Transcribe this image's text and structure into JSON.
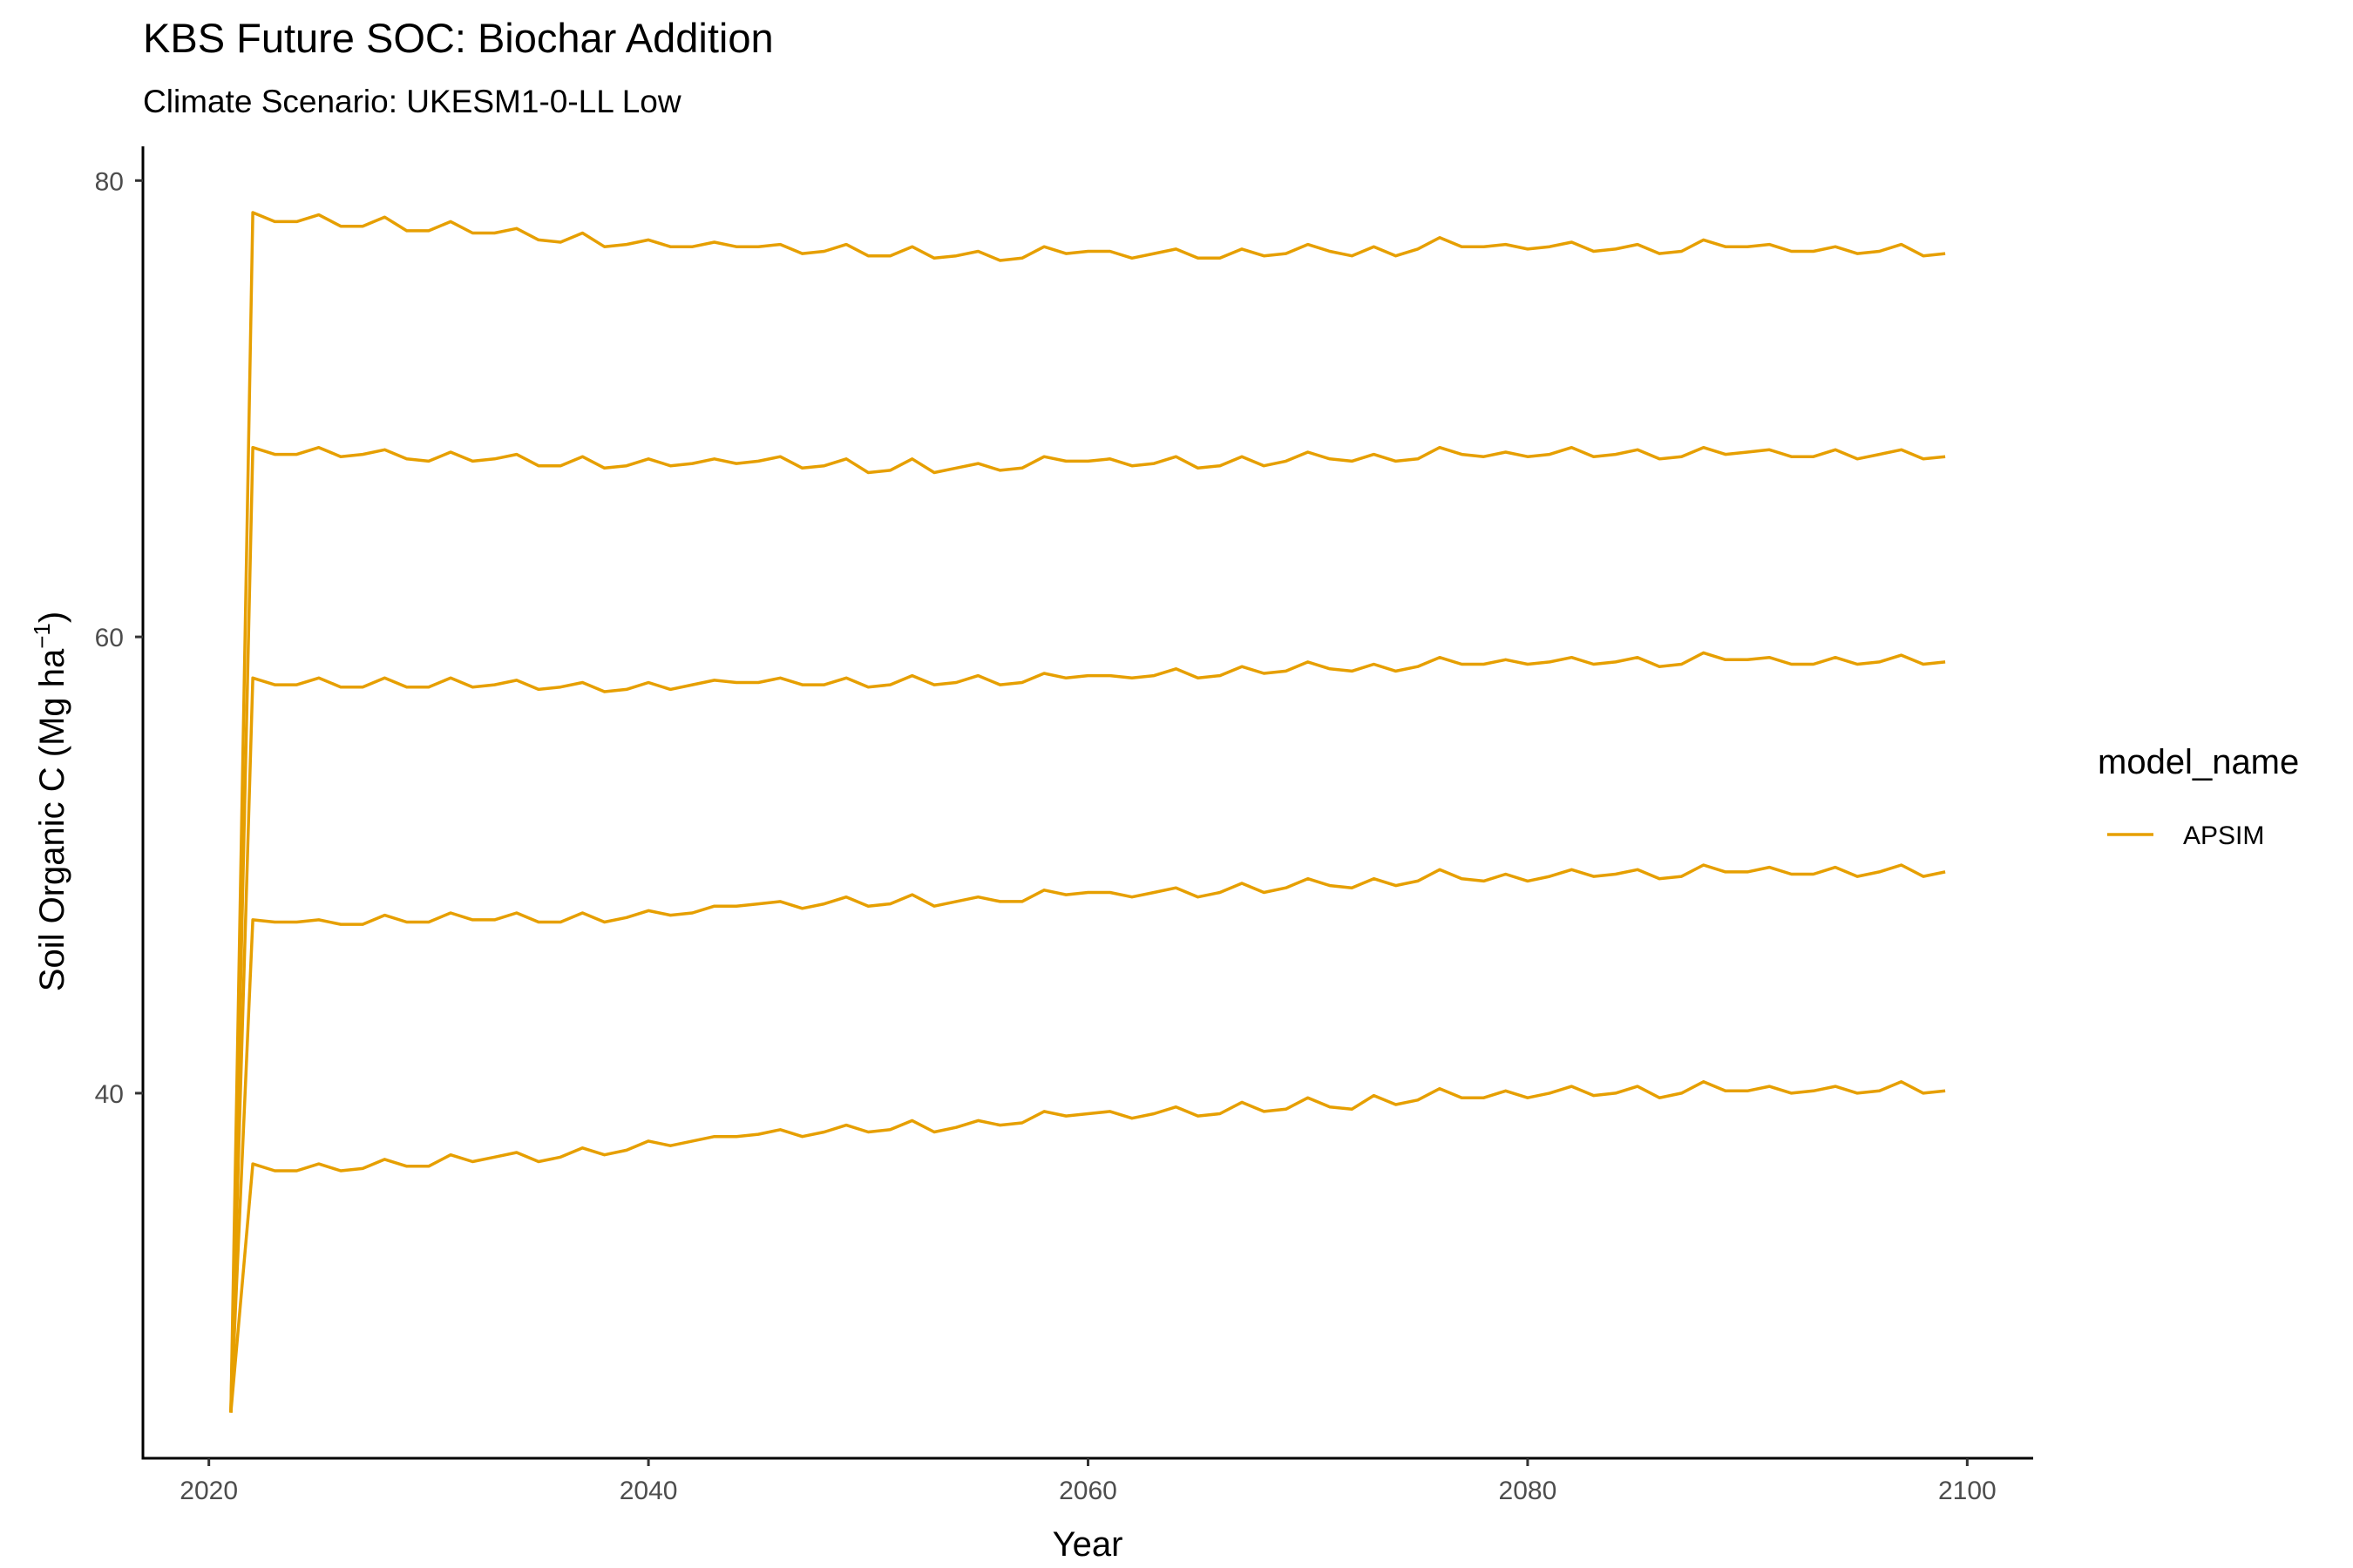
{
  "chart_data": {
    "type": "line",
    "title": "KBS  Future SOC: Biochar Addition",
    "subtitle": "Climate Scenario: UKESM1-0-LL Low",
    "xlabel": "Year",
    "ylabel_main": "Soil Organic C (Mg ha",
    "ylabel_sup": "−1",
    "ylabel_close": ")",
    "xlim": [
      2017,
      2103
    ],
    "ylim": [
      24,
      81.5
    ],
    "x_ticks": [
      2020,
      2040,
      2060,
      2080,
      2100
    ],
    "x_tick_labels": [
      "2020",
      "2040",
      "2060",
      "2080",
      "2100"
    ],
    "y_ticks": [
      40,
      60,
      80
    ],
    "y_tick_labels": [
      "40",
      "60",
      "80"
    ],
    "grid": false,
    "legend": {
      "title": "model_name",
      "position": "right",
      "entries": [
        {
          "label": "APSIM",
          "color": "#E69F00"
        }
      ]
    },
    "color": "#E69F00",
    "start": {
      "year": 2021,
      "soc": 26.0
    },
    "x": [
      2022,
      2023,
      2024,
      2025,
      2026,
      2027,
      2028,
      2029,
      2030,
      2031,
      2032,
      2033,
      2034,
      2035,
      2036,
      2037,
      2038,
      2039,
      2040,
      2041,
      2042,
      2043,
      2044,
      2045,
      2046,
      2047,
      2048,
      2049,
      2050,
      2051,
      2052,
      2053,
      2054,
      2055,
      2056,
      2057,
      2058,
      2059,
      2060,
      2061,
      2062,
      2063,
      2064,
      2065,
      2066,
      2067,
      2068,
      2069,
      2070,
      2071,
      2072,
      2073,
      2074,
      2075,
      2076,
      2077,
      2078,
      2079,
      2080,
      2081,
      2082,
      2083,
      2084,
      2085,
      2086,
      2087,
      2088,
      2089,
      2090,
      2091,
      2092,
      2093,
      2094,
      2095,
      2096,
      2097,
      2098,
      2099
    ],
    "series": [
      {
        "values": [
          36.9,
          36.6,
          36.6,
          36.9,
          36.6,
          36.7,
          37.1,
          36.8,
          36.8,
          37.3,
          37.0,
          37.2,
          37.4,
          37.0,
          37.2,
          37.6,
          37.3,
          37.5,
          37.9,
          37.7,
          37.9,
          38.1,
          38.1,
          38.2,
          38.4,
          38.1,
          38.3,
          38.6,
          38.3,
          38.4,
          38.8,
          38.3,
          38.5,
          38.8,
          38.6,
          38.7,
          39.2,
          39.0,
          39.1,
          39.2,
          38.9,
          39.1,
          39.4,
          39.0,
          39.1,
          39.6,
          39.2,
          39.3,
          39.8,
          39.4,
          39.3,
          39.9,
          39.5,
          39.7,
          40.2,
          39.8,
          39.8,
          40.1,
          39.8,
          40.0,
          40.3,
          39.9,
          40.0,
          40.3,
          39.8,
          40.0,
          40.5,
          40.1,
          40.1,
          40.3,
          40.0,
          40.1,
          40.3,
          40.0,
          40.1,
          40.5,
          40.0,
          40.1
        ]
      },
      {
        "values": [
          47.6,
          47.5,
          47.5,
          47.6,
          47.4,
          47.4,
          47.8,
          47.5,
          47.5,
          47.9,
          47.6,
          47.6,
          47.9,
          47.5,
          47.5,
          47.9,
          47.5,
          47.7,
          48.0,
          47.8,
          47.9,
          48.2,
          48.2,
          48.3,
          48.4,
          48.1,
          48.3,
          48.6,
          48.2,
          48.3,
          48.7,
          48.2,
          48.4,
          48.6,
          48.4,
          48.4,
          48.9,
          48.7,
          48.8,
          48.8,
          48.6,
          48.8,
          49.0,
          48.6,
          48.8,
          49.2,
          48.8,
          49.0,
          49.4,
          49.1,
          49.0,
          49.4,
          49.1,
          49.3,
          49.8,
          49.4,
          49.3,
          49.6,
          49.3,
          49.5,
          49.8,
          49.5,
          49.6,
          49.8,
          49.4,
          49.5,
          50.0,
          49.7,
          49.7,
          49.9,
          49.6,
          49.6,
          49.9,
          49.5,
          49.7,
          50.0,
          49.5,
          49.7
        ]
      },
      {
        "values": [
          58.2,
          57.9,
          57.9,
          58.2,
          57.8,
          57.8,
          58.2,
          57.8,
          57.8,
          58.2,
          57.8,
          57.9,
          58.1,
          57.7,
          57.8,
          58.0,
          57.6,
          57.7,
          58.0,
          57.7,
          57.9,
          58.1,
          58.0,
          58.0,
          58.2,
          57.9,
          57.9,
          58.2,
          57.8,
          57.9,
          58.3,
          57.9,
          58.0,
          58.3,
          57.9,
          58.0,
          58.4,
          58.2,
          58.3,
          58.3,
          58.2,
          58.3,
          58.6,
          58.2,
          58.3,
          58.7,
          58.4,
          58.5,
          58.9,
          58.6,
          58.5,
          58.8,
          58.5,
          58.7,
          59.1,
          58.8,
          58.8,
          59.0,
          58.8,
          58.9,
          59.1,
          58.8,
          58.9,
          59.1,
          58.7,
          58.8,
          59.3,
          59.0,
          59.0,
          59.1,
          58.8,
          58.8,
          59.1,
          58.8,
          58.9,
          59.2,
          58.8,
          58.9
        ]
      },
      {
        "values": [
          68.3,
          68.0,
          68.0,
          68.3,
          67.9,
          68.0,
          68.2,
          67.8,
          67.7,
          68.1,
          67.7,
          67.8,
          68.0,
          67.5,
          67.5,
          67.9,
          67.4,
          67.5,
          67.8,
          67.5,
          67.6,
          67.8,
          67.6,
          67.7,
          67.9,
          67.4,
          67.5,
          67.8,
          67.2,
          67.3,
          67.8,
          67.2,
          67.4,
          67.6,
          67.3,
          67.4,
          67.9,
          67.7,
          67.7,
          67.8,
          67.5,
          67.6,
          67.9,
          67.4,
          67.5,
          67.9,
          67.5,
          67.7,
          68.1,
          67.8,
          67.7,
          68.0,
          67.7,
          67.8,
          68.3,
          68.0,
          67.9,
          68.1,
          67.9,
          68.0,
          68.3,
          67.9,
          68.0,
          68.2,
          67.8,
          67.9,
          68.3,
          68.0,
          68.1,
          68.2,
          67.9,
          67.9,
          68.2,
          67.8,
          68.0,
          68.2,
          67.8,
          67.9
        ]
      },
      {
        "values": [
          78.6,
          78.2,
          78.2,
          78.5,
          78.0,
          78.0,
          78.4,
          77.8,
          77.8,
          78.2,
          77.7,
          77.7,
          77.9,
          77.4,
          77.3,
          77.7,
          77.1,
          77.2,
          77.4,
          77.1,
          77.1,
          77.3,
          77.1,
          77.1,
          77.2,
          76.8,
          76.9,
          77.2,
          76.7,
          76.7,
          77.1,
          76.6,
          76.7,
          76.9,
          76.5,
          76.6,
          77.1,
          76.8,
          76.9,
          76.9,
          76.6,
          76.8,
          77.0,
          76.6,
          76.6,
          77.0,
          76.7,
          76.8,
          77.2,
          76.9,
          76.7,
          77.1,
          76.7,
          77.0,
          77.5,
          77.1,
          77.1,
          77.2,
          77.0,
          77.1,
          77.3,
          76.9,
          77.0,
          77.2,
          76.8,
          76.9,
          77.4,
          77.1,
          77.1,
          77.2,
          76.9,
          76.9,
          77.1,
          76.8,
          76.9,
          77.2,
          76.7,
          76.8
        ]
      }
    ]
  }
}
